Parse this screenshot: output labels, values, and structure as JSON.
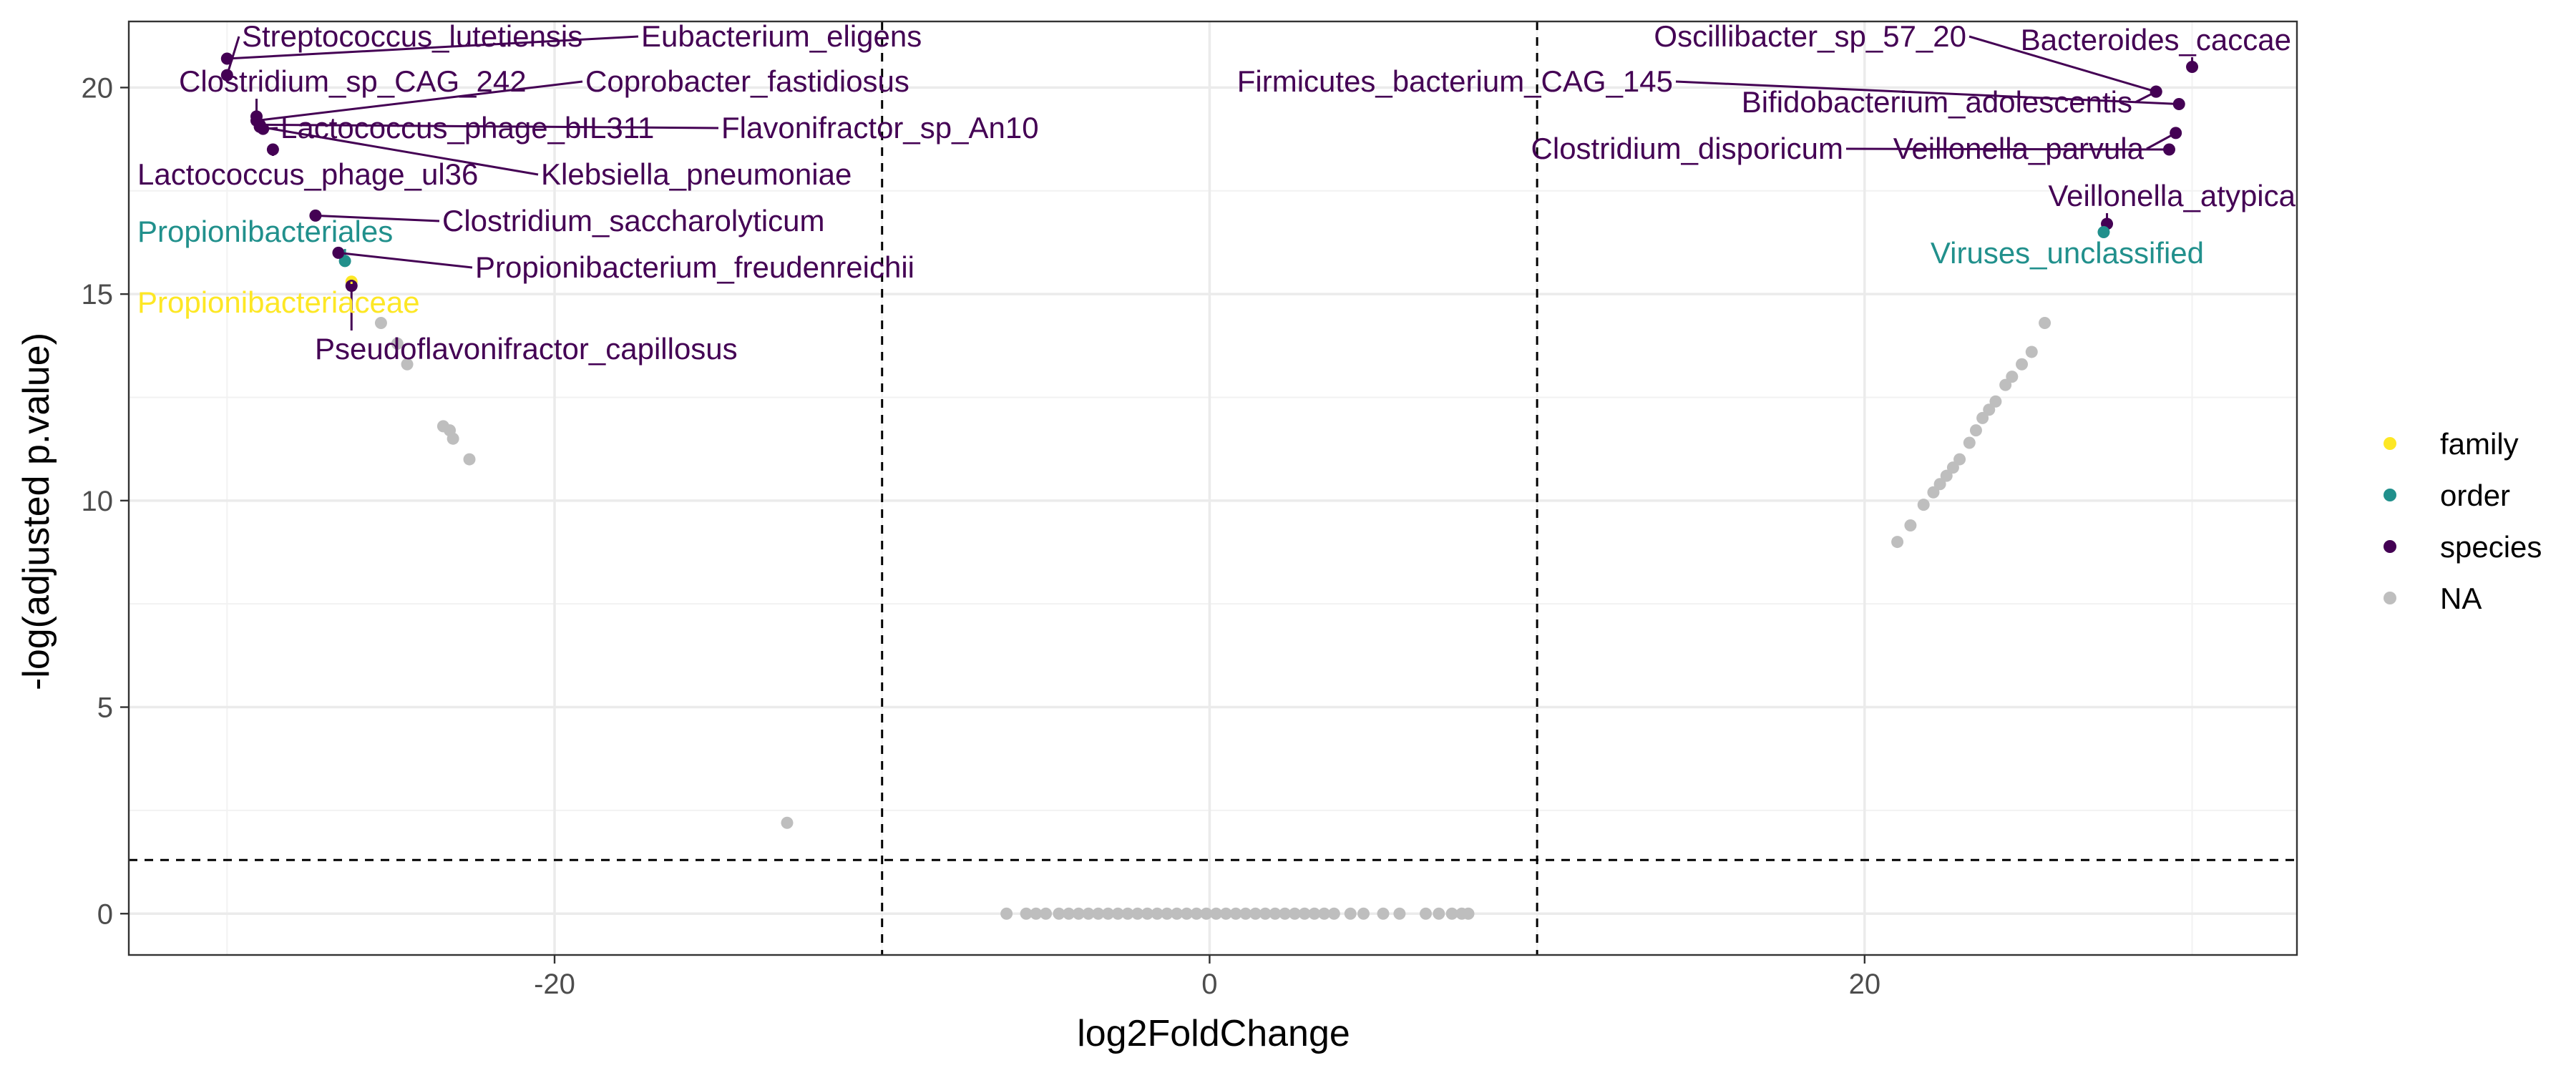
{
  "chart_data": {
    "type": "scatter",
    "title": "",
    "xlabel": "log2FoldChange",
    "ylabel": "-log(adjusted p.value)",
    "xlim": [
      -33,
      33.2
    ],
    "ylim": [
      -1,
      21.6
    ],
    "x_ticks": [
      -20,
      0,
      20
    ],
    "x_tick_labels": [
      "-20",
      "0",
      "20"
    ],
    "y_ticks": [
      0,
      5,
      10,
      15,
      20
    ],
    "y_tick_labels": [
      "0",
      "5",
      "10",
      "15",
      "20"
    ],
    "grid": true,
    "thresholds": {
      "log2fc": [
        -10,
        10
      ],
      "neg_log_p": 1.3
    },
    "legend": {
      "position": "right",
      "items": [
        {
          "name": "family",
          "color": "#fde725"
        },
        {
          "name": "order",
          "color": "#21908c"
        },
        {
          "name": "species",
          "color": "#440154"
        },
        {
          "name": "NA",
          "color": "#bebebe"
        }
      ]
    },
    "labeled_points": [
      {
        "label": "Streptococcus_lutetiensis",
        "x": -30.0,
        "y": 20.3,
        "group": "species"
      },
      {
        "label": "Eubacterium_eligens",
        "x": -30.0,
        "y": 20.7,
        "group": "species"
      },
      {
        "label": "Clostridium_sp_CAG_242",
        "x": -29.1,
        "y": 19.3,
        "group": "species"
      },
      {
        "label": "Coprobacter_fastidiosus",
        "x": -29.1,
        "y": 19.2,
        "group": "species"
      },
      {
        "label": "Lactococcus_phage_bIL311",
        "x": -28.9,
        "y": 19.0,
        "group": "species"
      },
      {
        "label": "Flavonifractor_sp_An10",
        "x": -29.0,
        "y": 19.1,
        "group": "species"
      },
      {
        "label": "Lactococcus_phage_ul36",
        "x": -28.6,
        "y": 18.5,
        "group": "species"
      },
      {
        "label": "Klebsiella_pneumoniae",
        "x": -29.0,
        "y": 19.05,
        "group": "species"
      },
      {
        "label": "Clostridium_saccharolyticum",
        "x": -27.3,
        "y": 16.9,
        "group": "species"
      },
      {
        "label": "Propionibacteriales",
        "x": -26.4,
        "y": 15.8,
        "group": "order"
      },
      {
        "label": "Propionibacterium_freudenreichii",
        "x": -26.6,
        "y": 16.0,
        "group": "species"
      },
      {
        "label": "Propionibacteriaceae",
        "x": -26.2,
        "y": 15.3,
        "group": "family"
      },
      {
        "label": "Pseudoflavonifractor_capillosus",
        "x": -26.2,
        "y": 15.2,
        "group": "species"
      },
      {
        "label": "Oscillibacter_sp_57_20",
        "x": 28.9,
        "y": 19.9,
        "group": "species"
      },
      {
        "label": "Bacteroides_caccae",
        "x": 30.0,
        "y": 20.5,
        "group": "species"
      },
      {
        "label": "Firmicutes_bacterium_CAG_145",
        "x": 29.6,
        "y": 19.6,
        "group": "species"
      },
      {
        "label": "Bifidobacterium_adolescentis",
        "x": 28.9,
        "y": 19.9,
        "group": "species"
      },
      {
        "label": "Clostridium_disporicum",
        "x": 29.3,
        "y": 18.5,
        "group": "species"
      },
      {
        "label": "Veillonella_parvula",
        "x": 29.5,
        "y": 18.9,
        "group": "species"
      },
      {
        "label": "Veillonella_atypica",
        "x": 27.4,
        "y": 16.7,
        "group": "species"
      },
      {
        "label": "Viruses_unclassified",
        "x": 27.3,
        "y": 16.5,
        "group": "order"
      }
    ],
    "unlabeled_points": [
      {
        "x": -25.3,
        "y": 14.3
      },
      {
        "x": -24.8,
        "y": 13.8
      },
      {
        "x": -24.5,
        "y": 13.3
      },
      {
        "x": -23.4,
        "y": 11.8
      },
      {
        "x": -23.2,
        "y": 11.7
      },
      {
        "x": -23.1,
        "y": 11.5
      },
      {
        "x": -22.6,
        "y": 11.0
      },
      {
        "x": -12.9,
        "y": 2.2
      },
      {
        "x": 21.0,
        "y": 9.0
      },
      {
        "x": 21.4,
        "y": 9.4
      },
      {
        "x": 21.8,
        "y": 9.9
      },
      {
        "x": 22.1,
        "y": 10.2
      },
      {
        "x": 22.3,
        "y": 10.4
      },
      {
        "x": 22.5,
        "y": 10.6
      },
      {
        "x": 22.7,
        "y": 10.8
      },
      {
        "x": 22.9,
        "y": 11.0
      },
      {
        "x": 23.2,
        "y": 11.4
      },
      {
        "x": 23.4,
        "y": 11.7
      },
      {
        "x": 23.6,
        "y": 12.0
      },
      {
        "x": 23.8,
        "y": 12.2
      },
      {
        "x": 24.0,
        "y": 12.4
      },
      {
        "x": 24.3,
        "y": 12.8
      },
      {
        "x": 24.5,
        "y": 13.0
      },
      {
        "x": 24.8,
        "y": 13.3
      },
      {
        "x": 25.1,
        "y": 13.6
      },
      {
        "x": 25.5,
        "y": 14.3
      },
      {
        "x": -6.2,
        "y": 0
      },
      {
        "x": -5.6,
        "y": 0
      },
      {
        "x": -5.3,
        "y": 0
      },
      {
        "x": -5.0,
        "y": 0
      },
      {
        "x": -4.6,
        "y": 0
      },
      {
        "x": -4.3,
        "y": 0
      },
      {
        "x": -4.0,
        "y": 0
      },
      {
        "x": -3.7,
        "y": 0
      },
      {
        "x": -3.4,
        "y": 0
      },
      {
        "x": -3.1,
        "y": 0
      },
      {
        "x": -2.8,
        "y": 0
      },
      {
        "x": -2.5,
        "y": 0
      },
      {
        "x": -2.2,
        "y": 0
      },
      {
        "x": -1.9,
        "y": 0
      },
      {
        "x": -1.6,
        "y": 0
      },
      {
        "x": -1.3,
        "y": 0
      },
      {
        "x": -1.0,
        "y": 0
      },
      {
        "x": -0.7,
        "y": 0
      },
      {
        "x": -0.4,
        "y": 0
      },
      {
        "x": -0.1,
        "y": 0
      },
      {
        "x": 0.2,
        "y": 0
      },
      {
        "x": 0.5,
        "y": 0
      },
      {
        "x": 0.8,
        "y": 0
      },
      {
        "x": 1.1,
        "y": 0
      },
      {
        "x": 1.4,
        "y": 0
      },
      {
        "x": 1.7,
        "y": 0
      },
      {
        "x": 2.0,
        "y": 0
      },
      {
        "x": 2.3,
        "y": 0
      },
      {
        "x": 2.6,
        "y": 0
      },
      {
        "x": 2.9,
        "y": 0
      },
      {
        "x": 3.2,
        "y": 0
      },
      {
        "x": 3.5,
        "y": 0
      },
      {
        "x": 3.8,
        "y": 0
      },
      {
        "x": 4.3,
        "y": 0
      },
      {
        "x": 4.7,
        "y": 0
      },
      {
        "x": 5.3,
        "y": 0
      },
      {
        "x": 5.8,
        "y": 0
      },
      {
        "x": 6.6,
        "y": 0
      },
      {
        "x": 7.0,
        "y": 0
      },
      {
        "x": 7.4,
        "y": 0
      },
      {
        "x": 7.7,
        "y": 0
      },
      {
        "x": 7.9,
        "y": 0
      }
    ]
  }
}
